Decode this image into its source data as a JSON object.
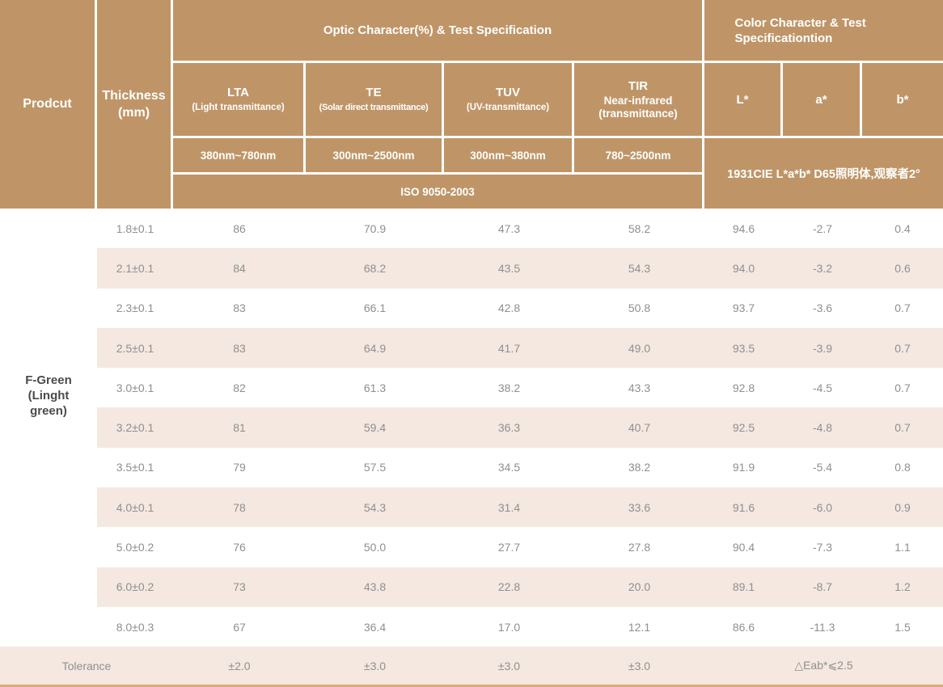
{
  "colors": {
    "header_brown": "#bf9568",
    "row_stripe": "#f4e8e1",
    "bottom_line": "#dcab74",
    "body_text_gray": "#8f8f8f",
    "product_text": "#4b4b4b",
    "header_text": "#ffffff"
  },
  "table": {
    "header": {
      "product": "Prodcut",
      "thickness_line1": "Thickness",
      "thickness_line2": "(mm)",
      "optic_title": "Optic Character(%) & Test Specification",
      "color_title": "Color Character & Test Specificationtion",
      "lta_abbr": "LTA",
      "lta_desc": "(Light transmittance)",
      "lta_range": "380nm~780nm",
      "te_abbr": "TE",
      "te_desc": "(Solar direct transmittance)",
      "te_range": "300nm~2500nm",
      "tuv_abbr": "TUV",
      "tuv_desc": "(UV-transmittance)",
      "tuv_range": "300nm~380nm",
      "tir_abbr": "TIR",
      "tir_desc": "Near-infrared",
      "tir_desc2": "(transmittance)",
      "tir_range": "780~2500nm",
      "l_label": "L*",
      "a_label": "a*",
      "b_label": "b*",
      "iso": "ISO 9050-2003",
      "cie": "1931CIE L*a*b*  D65照明体,观察者2°"
    },
    "product_name_line1": "F-Green",
    "product_name_line2": "(Linght",
    "product_name_line3": "green)",
    "rows": [
      {
        "thickness": "1.8±0.1",
        "lta": "86",
        "te": "70.9",
        "tuv": "47.3",
        "tir": "58.2",
        "l": "94.6",
        "a": "-2.7",
        "b": "0.4"
      },
      {
        "thickness": "2.1±0.1",
        "lta": "84",
        "te": "68.2",
        "tuv": "43.5",
        "tir": "54.3",
        "l": "94.0",
        "a": "-3.2",
        "b": "0.6"
      },
      {
        "thickness": "2.3±0.1",
        "lta": "83",
        "te": "66.1",
        "tuv": "42.8",
        "tir": "50.8",
        "l": "93.7",
        "a": "-3.6",
        "b": "0.7"
      },
      {
        "thickness": "2.5±0.1",
        "lta": "83",
        "te": "64.9",
        "tuv": "41.7",
        "tir": "49.0",
        "l": "93.5",
        "a": "-3.9",
        "b": "0.7"
      },
      {
        "thickness": "3.0±0.1",
        "lta": "82",
        "te": "61.3",
        "tuv": "38.2",
        "tir": "43.3",
        "l": "92.8",
        "a": "-4.5",
        "b": "0.7"
      },
      {
        "thickness": "3.2±0.1",
        "lta": "81",
        "te": "59.4",
        "tuv": "36.3",
        "tir": "40.7",
        "l": "92.5",
        "a": "-4.8",
        "b": "0.7"
      },
      {
        "thickness": "3.5±0.1",
        "lta": "79",
        "te": "57.5",
        "tuv": "34.5",
        "tir": "38.2",
        "l": "91.9",
        "a": "-5.4",
        "b": "0.8"
      },
      {
        "thickness": "4.0±0.1",
        "lta": "78",
        "te": "54.3",
        "tuv": "31.4",
        "tir": "33.6",
        "l": "91.6",
        "a": "-6.0",
        "b": "0.9"
      },
      {
        "thickness": "5.0±0.2",
        "lta": "76",
        "te": "50.0",
        "tuv": "27.7",
        "tir": "27.8",
        "l": "90.4",
        "a": "-7.3",
        "b": "1.1"
      },
      {
        "thickness": "6.0±0.2",
        "lta": "73",
        "te": "43.8",
        "tuv": "22.8",
        "tir": "20.0",
        "l": "89.1",
        "a": "-8.7",
        "b": "1.2"
      },
      {
        "thickness": "8.0±0.3",
        "lta": "67",
        "te": "36.4",
        "tuv": "17.0",
        "tir": "12.1",
        "l": "86.6",
        "a": "-11.3",
        "b": "1.5"
      }
    ],
    "tolerance": {
      "label": "Tolerance",
      "lta": "±2.0",
      "te": "±3.0",
      "tuv": "±3.0",
      "tir": "±3.0",
      "eab": "△Eab*⩽2.5"
    }
  }
}
